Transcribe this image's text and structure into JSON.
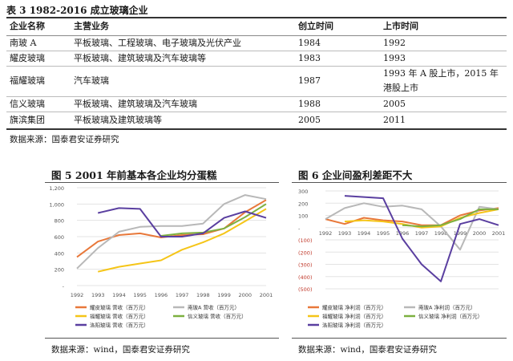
{
  "table": {
    "title": "表 3   1982-2016 成立玻璃企业",
    "headers": [
      "企业名称",
      "主营业务",
      "创立时间",
      "上市时间"
    ],
    "rows": [
      {
        "name": "南玻 A",
        "business": "平板玻璃、工程玻璃、电子玻璃及光伏产业",
        "founded": "1984",
        "listed": "1992"
      },
      {
        "name": "耀皮玻璃",
        "business": "平板玻璃、建筑玻璃及汽车玻璃等",
        "founded": "1983",
        "listed": "1993"
      },
      {
        "name": "福耀玻璃",
        "business": "汽车玻璃",
        "founded": "1987",
        "listed": "1993 年 A 股上市，2015 年",
        "listed2": "港股上市"
      },
      {
        "name": "信义玻璃",
        "business": "平板玻璃、建筑玻璃及汽车玻璃",
        "founded": "1988",
        "listed": "2005"
      },
      {
        "name": "旗滨集团",
        "business": "平板玻璃及建筑玻璃等",
        "founded": "2005",
        "listed": "2011"
      }
    ],
    "source": "数据来源：国泰君安证券研究"
  },
  "fig5": {
    "title": "图 5 2001 年前基本各企业均分蛋糕",
    "source": "数据来源：wind，国泰君安证券研究",
    "chart_data": {
      "type": "line",
      "x": [
        "1992",
        "1993",
        "1994",
        "1995",
        "1996",
        "1997",
        "1998",
        "1999",
        "2000",
        "2001"
      ],
      "ylim": [
        0,
        1200
      ],
      "yticks": [
        "1,200",
        "1,000",
        "800",
        "600",
        "400",
        "200",
        "-"
      ],
      "series": [
        {
          "name": "耀皮玻璃  营收（百万元）",
          "color": "#e8783a",
          "values": [
            350,
            540,
            620,
            640,
            590,
            620,
            630,
            700,
            900,
            1050
          ]
        },
        {
          "name": "南玻A  营收（百万元）",
          "color": "#b8b8b8",
          "values": [
            210,
            460,
            660,
            720,
            730,
            730,
            760,
            1000,
            1110,
            1060
          ]
        },
        {
          "name": "福耀玻璃  营收（百万元）",
          "color": "#f5c518",
          "values": [
            null,
            170,
            230,
            270,
            310,
            440,
            530,
            640,
            790,
            940
          ]
        },
        {
          "name": "信义玻璃  营收（百万元）",
          "color": "#7db040",
          "values": [
            null,
            null,
            null,
            null,
            610,
            640,
            650,
            700,
            840,
            1000
          ]
        },
        {
          "name": "洛阳玻璃  营收（百万元）",
          "color": "#5a3fa0",
          "values": [
            null,
            890,
            950,
            940,
            600,
            600,
            640,
            830,
            910,
            830
          ]
        }
      ]
    }
  },
  "fig6": {
    "title": "图 6  企业间盈利差距不大",
    "source": "数据来源：wind，国泰君安证券研究",
    "chart_data": {
      "type": "line",
      "x": [
        "1992",
        "1993",
        "1994",
        "1995",
        "1996",
        "1997",
        "1998",
        "1999",
        "2000",
        "2001"
      ],
      "ylim": [
        -500,
        300
      ],
      "yticks": [
        "300",
        "200",
        "100",
        "-",
        "(100)",
        "(200)",
        "(300)",
        "(400)",
        "(500)"
      ],
      "series": [
        {
          "name": "耀皮玻璃  净利润（百万元）",
          "color": "#e8783a",
          "values": [
            70,
            30,
            80,
            60,
            50,
            20,
            20,
            100,
            140,
            160
          ]
        },
        {
          "name": "南玻A  净利润（百万元）",
          "color": "#b8b8b8",
          "values": [
            70,
            160,
            200,
            170,
            180,
            150,
            10,
            -180,
            170,
            150
          ]
        },
        {
          "name": "福耀玻璃  净利润（百万元）",
          "color": "#f5c518",
          "values": [
            null,
            50,
            60,
            50,
            30,
            0,
            10,
            80,
            120,
            150
          ]
        },
        {
          "name": "信义玻璃  净利润（百万元）",
          "color": "#7db040",
          "values": [
            null,
            null,
            null,
            null,
            20,
            10,
            20,
            70,
            150,
            150
          ]
        },
        {
          "name": "洛阳玻璃  净利润（百万元）",
          "color": "#5a3fa0",
          "values": [
            null,
            260,
            250,
            240,
            -90,
            -300,
            -440,
            30,
            70,
            20
          ]
        }
      ]
    }
  }
}
